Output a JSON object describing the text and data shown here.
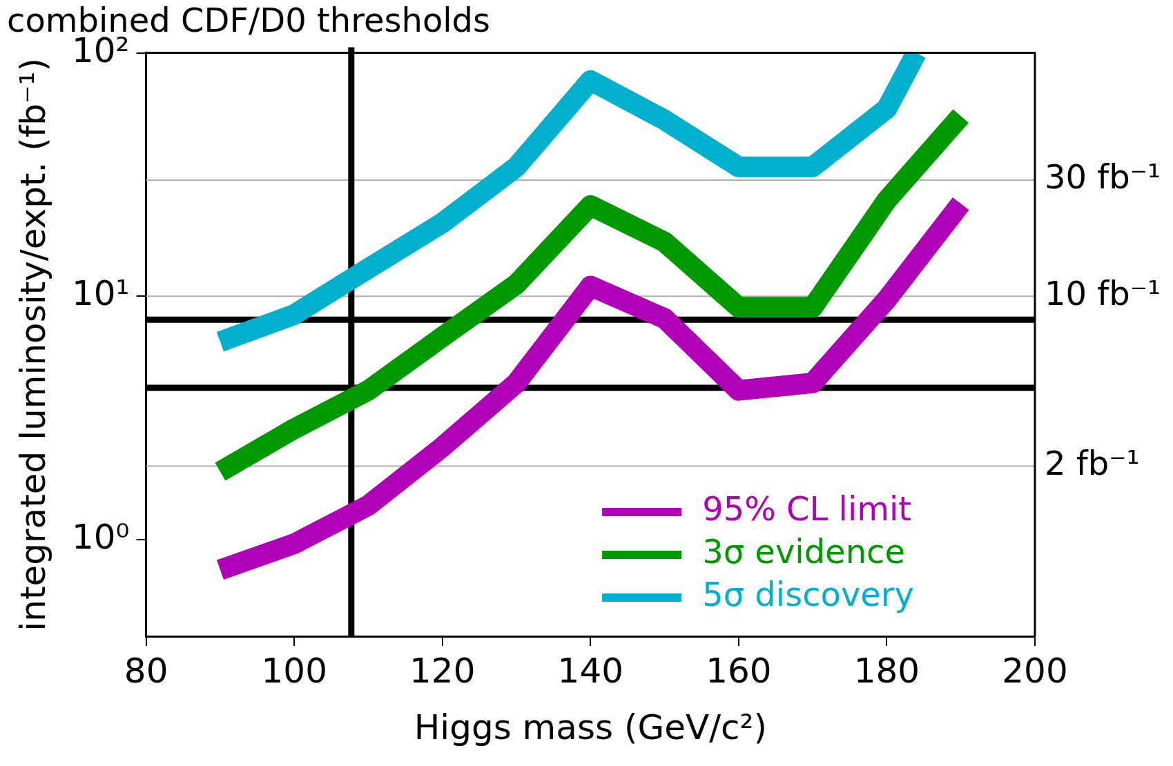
{
  "chart_data": {
    "type": "line",
    "title": "combined CDF/D0 thresholds",
    "xlabel": "Higgs mass (GeV/c²)",
    "ylabel": "integrated luminosity/expt. (fb⁻¹)",
    "x": [
      90,
      100,
      110,
      120,
      130,
      140,
      150,
      160,
      170,
      180,
      190
    ],
    "series": [
      {
        "name": "95% CL limit",
        "color": "#b000b8",
        "values": [
          0.75,
          0.96,
          1.38,
          2.4,
          4.4,
          11,
          8.1,
          4.1,
          4.4,
          9.7,
          24
        ]
      },
      {
        "name": "3σ evidence",
        "color": "#009a00",
        "values": [
          1.9,
          2.85,
          4.1,
          6.8,
          11.2,
          23.6,
          16.7,
          9.0,
          9.0,
          24.8,
          55
        ]
      },
      {
        "name": "5σ discovery",
        "color": "#00b0cc",
        "x": [
          90,
          100,
          110,
          120,
          130,
          140,
          150,
          160,
          170,
          180,
          184
        ],
        "values": [
          6.5,
          8.4,
          13,
          20,
          34,
          77,
          53,
          34,
          34,
          59,
          100
        ]
      }
    ],
    "log": "y",
    "xlim": [
      80,
      200
    ],
    "xticks": [
      80,
      100,
      120,
      140,
      160,
      180,
      200
    ],
    "ylim": [
      0.4,
      100
    ],
    "yticks": [
      {
        "value": 1,
        "label": "10⁰"
      },
      {
        "value": 10,
        "label": "10¹"
      },
      {
        "value": 100,
        "label": "10²"
      }
    ],
    "grid": false,
    "legend": "bottom right",
    "marker": "none",
    "line_style": "solid",
    "ref_lines": [
      {
        "axis": "y",
        "value": 30,
        "label": "30 fb⁻¹",
        "color": "#b0b0b0"
      },
      {
        "axis": "y",
        "value": 10,
        "label": "10 fb⁻¹",
        "color": "#b0b0b0"
      },
      {
        "axis": "y",
        "value": 2,
        "label": "2 fb⁻¹",
        "color": "#b0b0b0"
      },
      {
        "axis": "y",
        "value": 8,
        "color": "#000000"
      },
      {
        "axis": "y",
        "value": 4.2,
        "color": "#000000"
      },
      {
        "axis": "x",
        "value": 107.7,
        "color": "#000000"
      }
    ]
  }
}
